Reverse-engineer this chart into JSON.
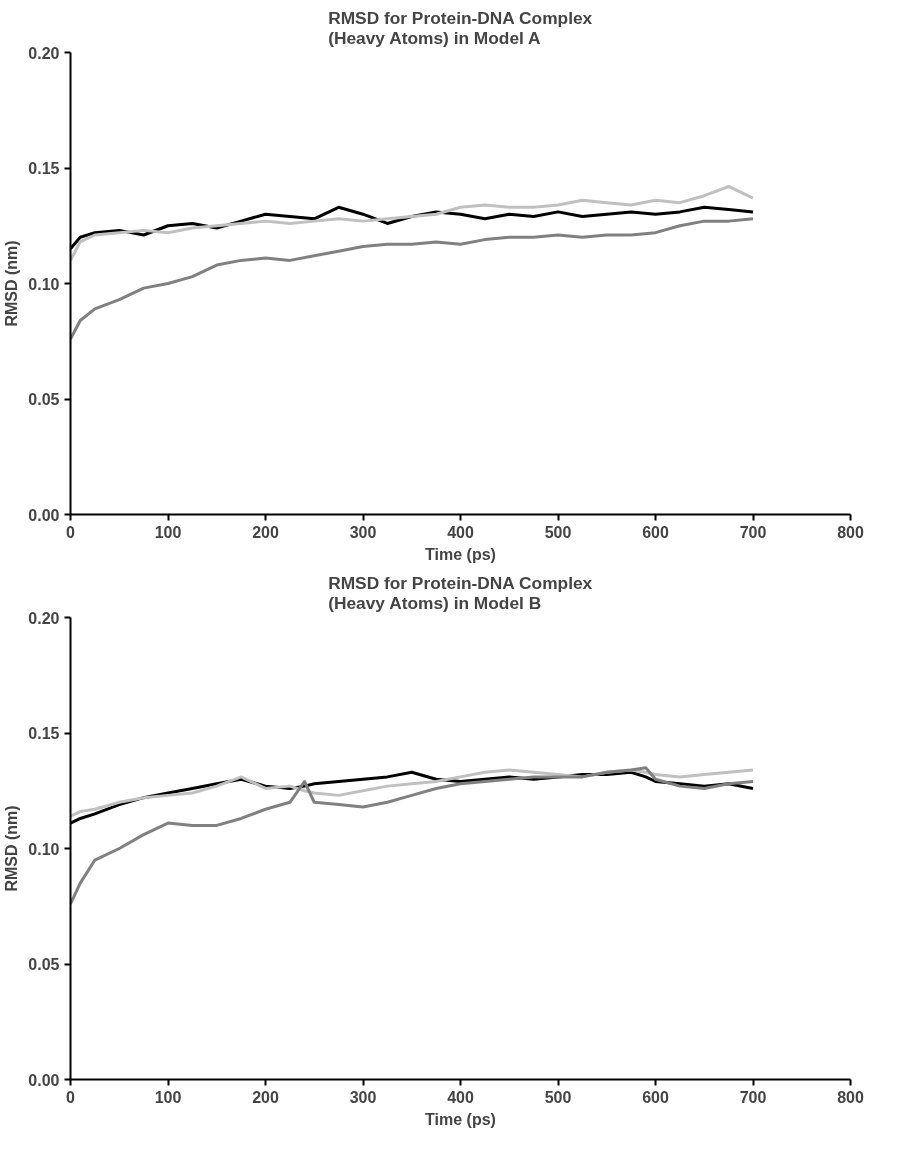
{
  "chart_data": [
    {
      "type": "line",
      "title": "RMSD for Protein-DNA Complex\n(Heavy Atoms) in Model A",
      "xlabel": "Time (ps)",
      "ylabel": "RMSD (nm)",
      "x": [
        0,
        10,
        25,
        50,
        75,
        100,
        125,
        150,
        175,
        200,
        225,
        250,
        275,
        300,
        325,
        350,
        375,
        400,
        425,
        450,
        475,
        500,
        525,
        550,
        575,
        600,
        625,
        650,
        675,
        700
      ],
      "xlim": [
        0,
        800
      ],
      "xticks": [
        0,
        100,
        200,
        300,
        400,
        500,
        600,
        700,
        800
      ],
      "ylim": [
        0,
        0.2
      ],
      "yticks": [
        {
          "value": 0,
          "label": "0.00"
        },
        {
          "value": 0.05,
          "label": "0.05"
        },
        {
          "value": 0.1,
          "label": "0.10"
        },
        {
          "value": 0.15,
          "label": "0.15"
        },
        {
          "value": 0.2,
          "label": "0.20"
        }
      ],
      "grid": false,
      "marker": "none",
      "line_style": "solid",
      "series": [
        {
          "color": "#000000",
          "values": [
            0.115,
            0.12,
            0.122,
            0.123,
            0.121,
            0.125,
            0.126,
            0.124,
            0.127,
            0.13,
            0.129,
            0.128,
            0.133,
            0.13,
            0.126,
            0.129,
            0.131,
            0.13,
            0.128,
            0.13,
            0.129,
            0.131,
            0.129,
            0.13,
            0.131,
            0.13,
            0.131,
            0.133,
            0.132,
            0.131
          ]
        },
        {
          "color": "#c0c0c0",
          "values": [
            0.11,
            0.118,
            0.121,
            0.122,
            0.123,
            0.122,
            0.124,
            0.125,
            0.126,
            0.127,
            0.126,
            0.127,
            0.128,
            0.127,
            0.128,
            0.129,
            0.13,
            0.133,
            0.134,
            0.133,
            0.133,
            0.134,
            0.136,
            0.135,
            0.134,
            0.136,
            0.135,
            0.138,
            0.142,
            0.137
          ]
        },
        {
          "color": "#808080",
          "values": [
            0.076,
            0.084,
            0.089,
            0.093,
            0.098,
            0.1,
            0.103,
            0.108,
            0.11,
            0.111,
            0.11,
            0.112,
            0.114,
            0.116,
            0.117,
            0.117,
            0.118,
            0.117,
            0.119,
            0.12,
            0.12,
            0.121,
            0.12,
            0.121,
            0.121,
            0.122,
            0.125,
            0.127,
            0.127,
            0.128
          ]
        }
      ]
    },
    {
      "type": "line",
      "title": "RMSD for Protein-DNA Complex\n(Heavy Atoms) in Model B",
      "xlabel": "Time (ps)",
      "ylabel": "RMSD (nm)",
      "x": [
        0,
        10,
        25,
        50,
        75,
        100,
        125,
        150,
        175,
        200,
        225,
        240,
        250,
        275,
        300,
        325,
        350,
        375,
        400,
        425,
        450,
        475,
        500,
        525,
        550,
        575,
        590,
        600,
        625,
        650,
        675,
        700
      ],
      "xlim": [
        0,
        800
      ],
      "xticks": [
        0,
        100,
        200,
        300,
        400,
        500,
        600,
        700,
        800
      ],
      "ylim": [
        0,
        0.2
      ],
      "yticks": [
        {
          "value": 0,
          "label": "0.00"
        },
        {
          "value": 0.05,
          "label": "0.05"
        },
        {
          "value": 0.1,
          "label": "0.10"
        },
        {
          "value": 0.15,
          "label": "0.15"
        },
        {
          "value": 0.2,
          "label": "0.20"
        }
      ],
      "grid": false,
      "marker": "none",
      "line_style": "solid",
      "series": [
        {
          "color": "#000000",
          "values": [
            0.111,
            0.113,
            0.115,
            0.119,
            0.122,
            0.124,
            0.126,
            0.128,
            0.13,
            0.127,
            0.126,
            0.127,
            0.128,
            0.129,
            0.13,
            0.131,
            0.133,
            0.13,
            0.129,
            0.13,
            0.131,
            0.13,
            0.131,
            0.132,
            0.132,
            0.133,
            0.131,
            0.129,
            0.128,
            0.127,
            0.128,
            0.126
          ]
        },
        {
          "color": "#c0c0c0",
          "values": [
            0.114,
            0.116,
            0.117,
            0.12,
            0.122,
            0.123,
            0.124,
            0.127,
            0.131,
            0.126,
            0.127,
            0.125,
            0.124,
            0.123,
            0.125,
            0.127,
            0.128,
            0.129,
            0.131,
            0.133,
            0.134,
            0.133,
            0.132,
            0.131,
            0.133,
            0.134,
            0.133,
            0.132,
            0.131,
            0.132,
            0.133,
            0.134
          ]
        },
        {
          "color": "#808080",
          "values": [
            0.076,
            0.085,
            0.095,
            0.1,
            0.106,
            0.111,
            0.11,
            0.11,
            0.113,
            0.117,
            0.12,
            0.129,
            0.12,
            0.119,
            0.118,
            0.12,
            0.123,
            0.126,
            0.128,
            0.129,
            0.13,
            0.131,
            0.131,
            0.131,
            0.133,
            0.134,
            0.135,
            0.13,
            0.127,
            0.126,
            0.128,
            0.129
          ]
        }
      ]
    }
  ]
}
